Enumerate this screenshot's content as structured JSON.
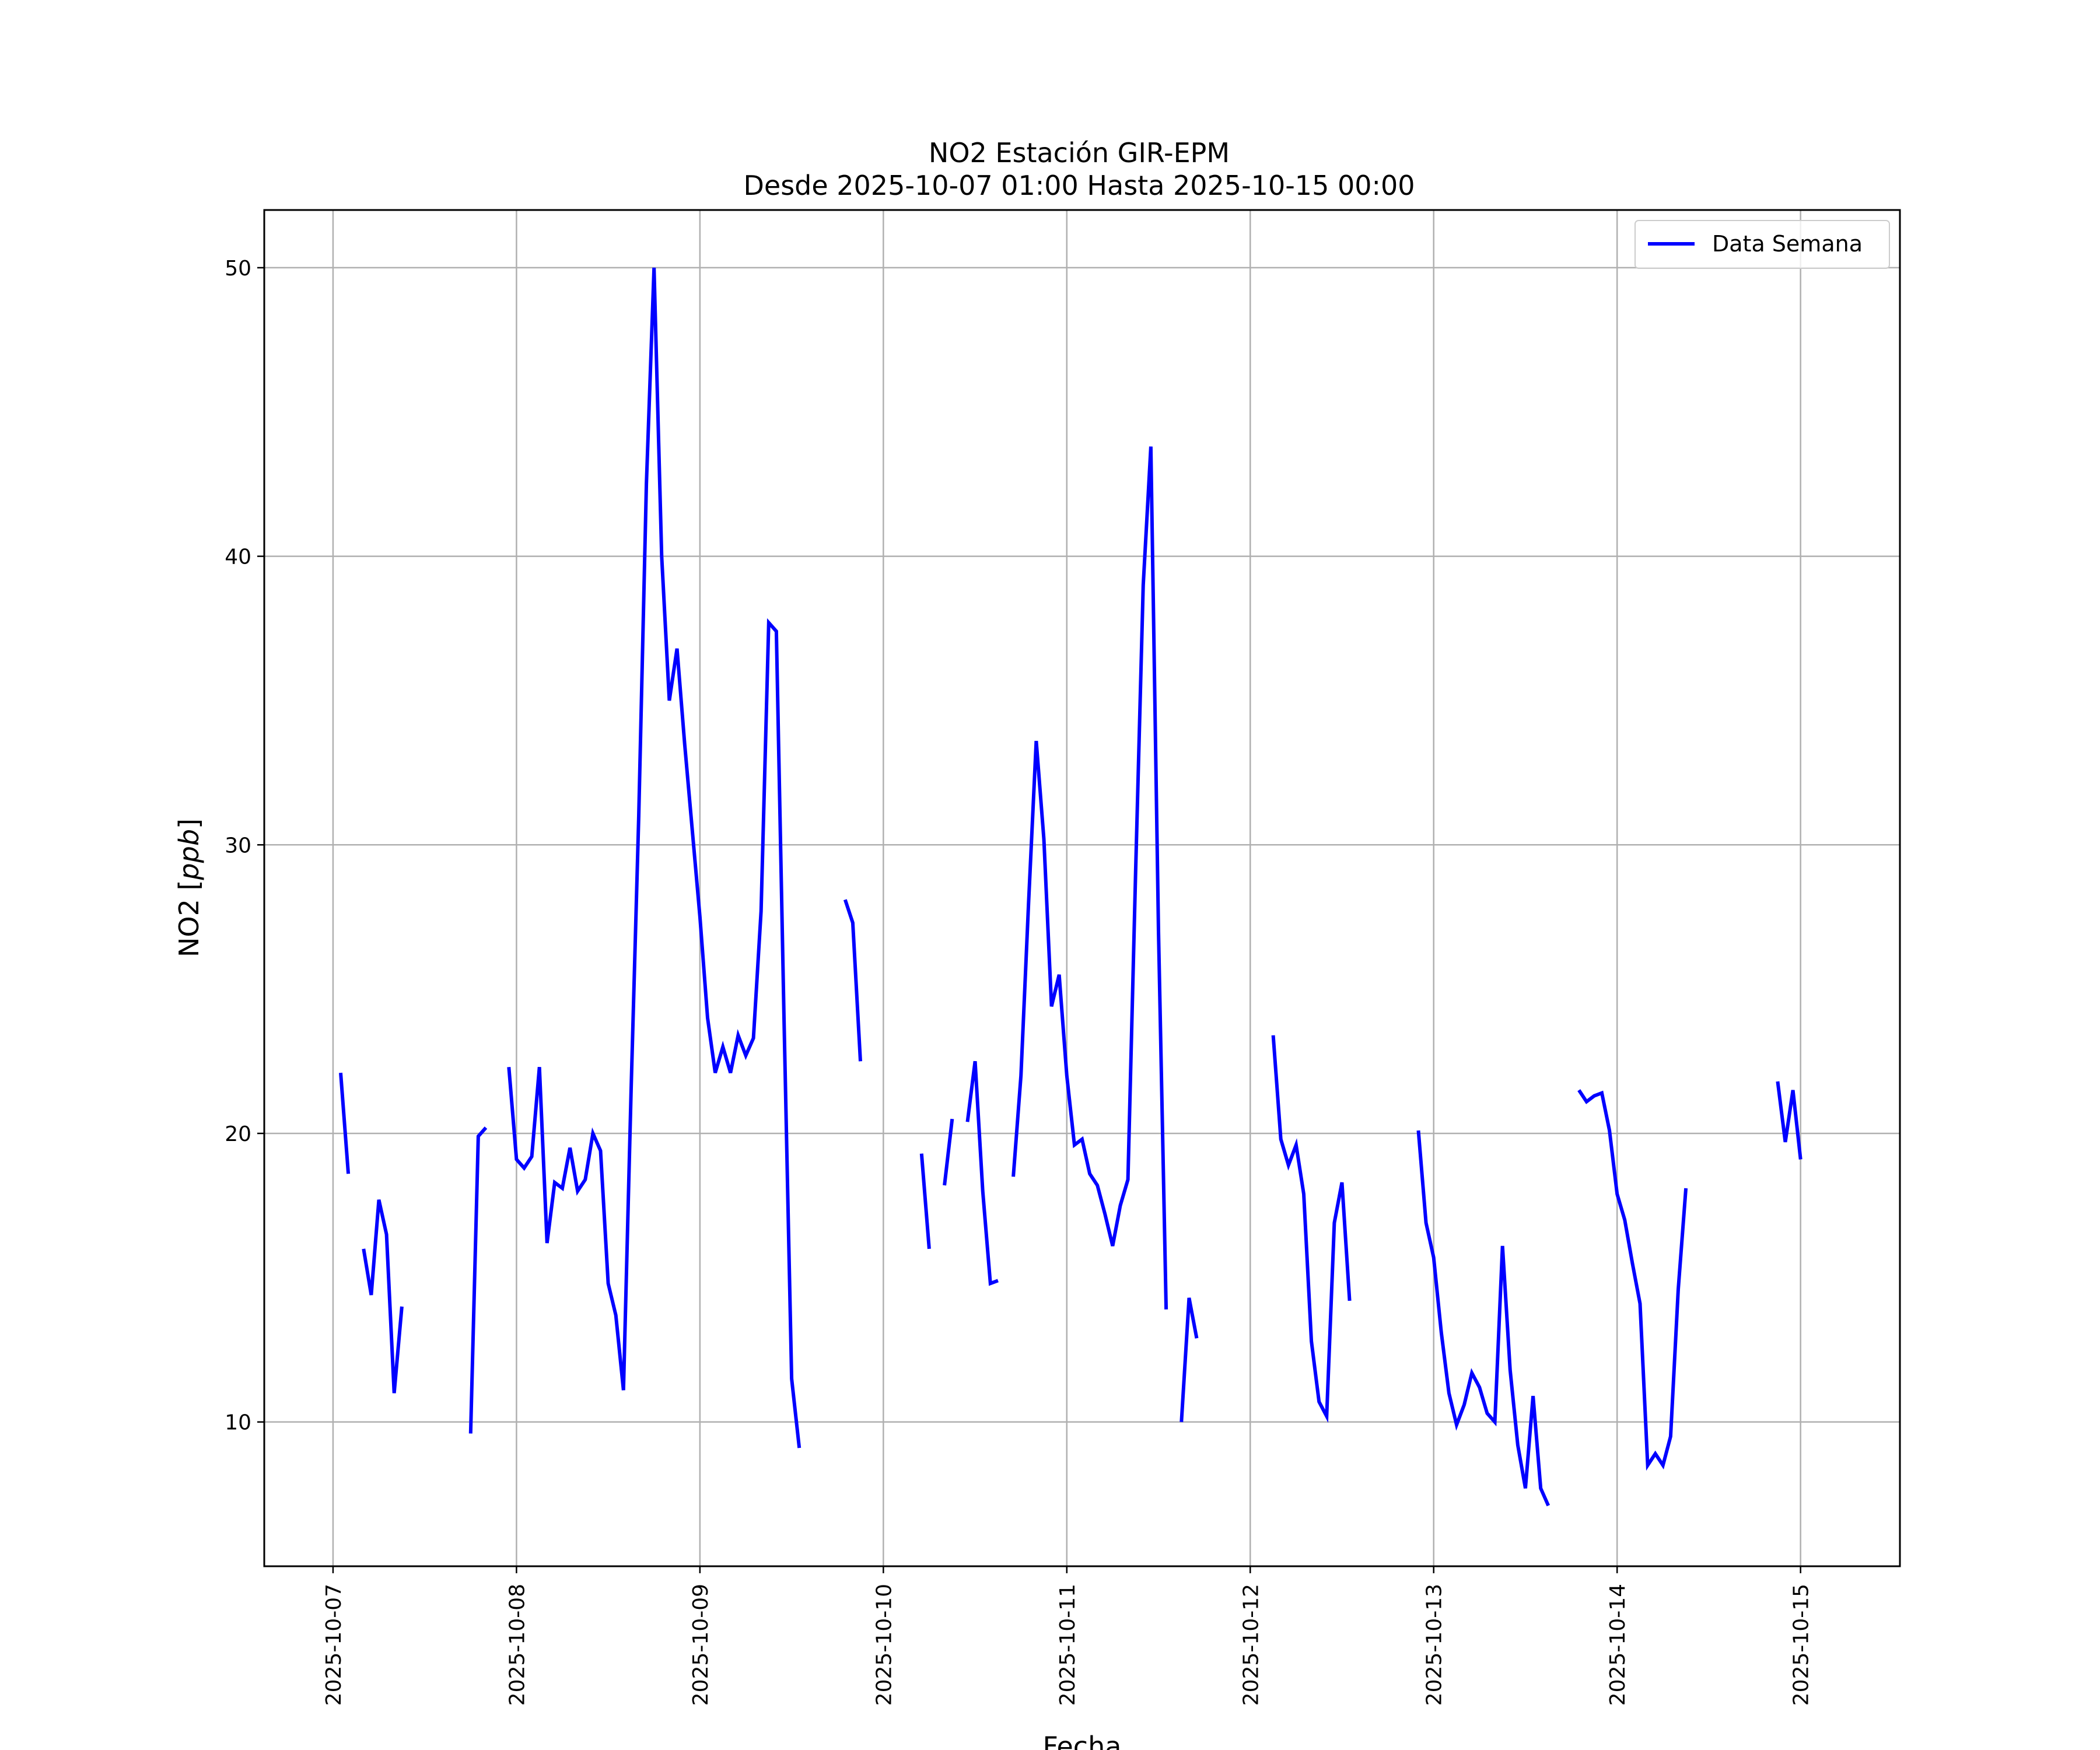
{
  "chart_data": {
    "type": "line",
    "title": "NO2 Estación GIR-EPM",
    "subtitle": "Desde 2025-10-07 01:00 Hasta 2025-10-15 00:00",
    "xlabel": "Fecha",
    "ylabel": "NO2 [ppb]",
    "ylabel_parts": {
      "prefix": "NO2 [",
      "unit": "ppb",
      "suffix": "]"
    },
    "xlim": [
      "2025-10-06 15:00",
      "2025-10-15 13:00"
    ],
    "ylim": [
      5,
      52
    ],
    "xticks": [
      "2025-10-07",
      "2025-10-08",
      "2025-10-09",
      "2025-10-10",
      "2025-10-11",
      "2025-10-12",
      "2025-10-13",
      "2025-10-14",
      "2025-10-15"
    ],
    "yticks": [
      10,
      20,
      30,
      40,
      50
    ],
    "grid": true,
    "legend_position": "top-right",
    "series": [
      {
        "name": "Data Semana",
        "color": "#0000ff",
        "segments": [
          [
            [
              "2025-10-07 01:00",
              22.1
            ],
            [
              "2025-10-07 02:00",
              18.6
            ]
          ],
          [
            [
              "2025-10-07 04:00",
              16.0
            ],
            [
              "2025-10-07 05:00",
              14.4
            ],
            [
              "2025-10-07 06:00",
              17.7
            ],
            [
              "2025-10-07 07:00",
              16.5
            ],
            [
              "2025-10-07 08:00",
              11.0
            ],
            [
              "2025-10-07 09:00",
              14.0
            ]
          ],
          [
            [
              "2025-10-07 18:00",
              9.6
            ],
            [
              "2025-10-07 19:00",
              19.9
            ],
            [
              "2025-10-07 20:00",
              20.2
            ]
          ],
          [
            [
              "2025-10-07 23:00",
              22.3
            ],
            [
              "2025-10-08 00:00",
              19.1
            ],
            [
              "2025-10-08 01:00",
              18.8
            ],
            [
              "2025-10-08 02:00",
              19.2
            ],
            [
              "2025-10-08 03:00",
              22.3
            ],
            [
              "2025-10-08 04:00",
              16.2
            ],
            [
              "2025-10-08 05:00",
              18.3
            ],
            [
              "2025-10-08 06:00",
              18.1
            ],
            [
              "2025-10-08 07:00",
              19.5
            ],
            [
              "2025-10-08 08:00",
              18.0
            ],
            [
              "2025-10-08 09:00",
              18.4
            ],
            [
              "2025-10-08 10:00",
              20.0
            ],
            [
              "2025-10-08 11:00",
              19.4
            ],
            [
              "2025-10-08 12:00",
              14.8
            ],
            [
              "2025-10-08 13:00",
              13.7
            ],
            [
              "2025-10-08 14:00",
              11.1
            ],
            [
              "2025-10-08 15:00",
              21.5
            ],
            [
              "2025-10-08 16:00",
              31.0
            ],
            [
              "2025-10-08 17:00",
              42.5
            ],
            [
              "2025-10-08 18:00",
              50.0
            ],
            [
              "2025-10-08 19:00",
              40.0
            ],
            [
              "2025-10-08 20:00",
              35.0
            ],
            [
              "2025-10-08 21:00",
              36.8
            ],
            [
              "2025-10-08 22:00",
              33.5
            ],
            [
              "2025-10-08 23:00",
              30.5
            ],
            [
              "2025-10-09 00:00",
              27.5
            ],
            [
              "2025-10-09 01:00",
              24.0
            ],
            [
              "2025-10-09 02:00",
              22.1
            ],
            [
              "2025-10-09 03:00",
              23.0
            ],
            [
              "2025-10-09 04:00",
              22.1
            ],
            [
              "2025-10-09 05:00",
              23.4
            ],
            [
              "2025-10-09 06:00",
              22.7
            ],
            [
              "2025-10-09 07:00",
              23.3
            ],
            [
              "2025-10-09 08:00",
              27.7
            ],
            [
              "2025-10-09 09:00",
              37.7
            ],
            [
              "2025-10-09 10:00",
              37.4
            ],
            [
              "2025-10-09 11:00",
              24.0
            ],
            [
              "2025-10-09 12:00",
              11.5
            ],
            [
              "2025-10-09 13:00",
              9.1
            ]
          ],
          [
            [
              "2025-10-09 19:00",
              28.1
            ],
            [
              "2025-10-09 20:00",
              27.3
            ],
            [
              "2025-10-09 21:00",
              22.5
            ]
          ],
          [
            [
              "2025-10-10 05:00",
              19.3
            ],
            [
              "2025-10-10 06:00",
              16.0
            ]
          ],
          [
            [
              "2025-10-10 08:00",
              18.2
            ],
            [
              "2025-10-10 09:00",
              20.5
            ]
          ],
          [
            [
              "2025-10-10 11:00",
              20.4
            ],
            [
              "2025-10-10 12:00",
              22.5
            ],
            [
              "2025-10-10 13:00",
              18.0
            ],
            [
              "2025-10-10 14:00",
              14.8
            ],
            [
              "2025-10-10 15:00",
              14.9
            ]
          ],
          [
            [
              "2025-10-10 17:00",
              18.5
            ],
            [
              "2025-10-10 18:00",
              22.0
            ],
            [
              "2025-10-10 19:00",
              28.0
            ],
            [
              "2025-10-10 20:00",
              33.6
            ],
            [
              "2025-10-10 21:00",
              30.2
            ],
            [
              "2025-10-10 22:00",
              24.4
            ],
            [
              "2025-10-10 23:00",
              25.5
            ],
            [
              "2025-10-11 00:00",
              22.0
            ],
            [
              "2025-10-11 01:00",
              19.6
            ],
            [
              "2025-10-11 02:00",
              19.8
            ],
            [
              "2025-10-11 03:00",
              18.6
            ],
            [
              "2025-10-11 04:00",
              18.2
            ],
            [
              "2025-10-11 05:00",
              17.2
            ],
            [
              "2025-10-11 06:00",
              16.1
            ],
            [
              "2025-10-11 07:00",
              17.5
            ],
            [
              "2025-10-11 08:00",
              18.4
            ],
            [
              "2025-10-11 09:00",
              29.0
            ],
            [
              "2025-10-11 10:00",
              39.0
            ],
            [
              "2025-10-11 11:00",
              43.8
            ],
            [
              "2025-10-11 12:00",
              27.0
            ],
            [
              "2025-10-11 13:00",
              13.9
            ]
          ],
          [
            [
              "2025-10-11 15:00",
              10.0
            ],
            [
              "2025-10-11 16:00",
              14.3
            ],
            [
              "2025-10-11 17:00",
              12.9
            ]
          ],
          [
            [
              "2025-10-12 03:00",
              23.4
            ],
            [
              "2025-10-12 04:00",
              19.8
            ],
            [
              "2025-10-12 05:00",
              18.9
            ],
            [
              "2025-10-12 06:00",
              19.6
            ],
            [
              "2025-10-12 07:00",
              17.9
            ],
            [
              "2025-10-12 08:00",
              12.8
            ],
            [
              "2025-10-12 09:00",
              10.7
            ],
            [
              "2025-10-12 10:00",
              10.2
            ],
            [
              "2025-10-12 11:00",
              16.9
            ],
            [
              "2025-10-12 12:00",
              18.3
            ],
            [
              "2025-10-12 13:00",
              14.2
            ]
          ],
          [
            [
              "2025-10-12 22:00",
              20.1
            ],
            [
              "2025-10-12 23:00",
              16.9
            ],
            [
              "2025-10-13 00:00",
              15.7
            ],
            [
              "2025-10-13 01:00",
              13.1
            ],
            [
              "2025-10-13 02:00",
              11.0
            ],
            [
              "2025-10-13 03:00",
              9.9
            ],
            [
              "2025-10-13 04:00",
              10.6
            ],
            [
              "2025-10-13 05:00",
              11.7
            ],
            [
              "2025-10-13 06:00",
              11.2
            ],
            [
              "2025-10-13 07:00",
              10.3
            ],
            [
              "2025-10-13 08:00",
              10.0
            ],
            [
              "2025-10-13 09:00",
              16.1
            ],
            [
              "2025-10-13 10:00",
              11.8
            ],
            [
              "2025-10-13 11:00",
              9.2
            ],
            [
              "2025-10-13 12:00",
              7.7
            ],
            [
              "2025-10-13 13:00",
              10.9
            ],
            [
              "2025-10-13 14:00",
              7.7
            ],
            [
              "2025-10-13 15:00",
              7.1
            ]
          ],
          [
            [
              "2025-10-13 19:00",
              21.5
            ],
            [
              "2025-10-13 20:00",
              21.1
            ],
            [
              "2025-10-13 21:00",
              21.3
            ],
            [
              "2025-10-13 22:00",
              21.4
            ],
            [
              "2025-10-13 23:00",
              20.1
            ],
            [
              "2025-10-14 00:00",
              17.9
            ],
            [
              "2025-10-14 01:00",
              17.0
            ],
            [
              "2025-10-14 02:00",
              15.5
            ],
            [
              "2025-10-14 03:00",
              14.1
            ],
            [
              "2025-10-14 04:00",
              8.5
            ],
            [
              "2025-10-14 05:00",
              8.9
            ],
            [
              "2025-10-14 06:00",
              8.5
            ],
            [
              "2025-10-14 07:00",
              9.5
            ],
            [
              "2025-10-14 08:00",
              14.6
            ],
            [
              "2025-10-14 09:00",
              18.1
            ]
          ],
          [
            [
              "2025-10-14 21:00",
              21.8
            ],
            [
              "2025-10-14 22:00",
              19.7
            ],
            [
              "2025-10-14 23:00",
              21.5
            ],
            [
              "2025-10-15 00:00",
              19.1
            ]
          ]
        ]
      }
    ]
  }
}
